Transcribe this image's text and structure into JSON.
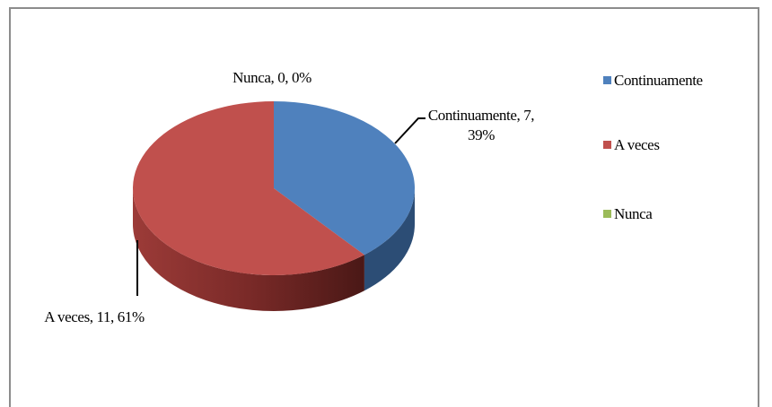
{
  "chart_data": {
    "type": "pie",
    "categories": [
      "Continuamente",
      "A veces",
      "Nunca"
    ],
    "values": [
      7,
      11,
      0
    ],
    "value_labels": [
      "Continuamente, 7, 39%",
      "A veces, 11, 61%",
      "Nunca, 0, 0%"
    ],
    "colors": [
      "#4f81bd",
      "#c0504d",
      "#9bbb59"
    ],
    "legend": "right"
  }
}
